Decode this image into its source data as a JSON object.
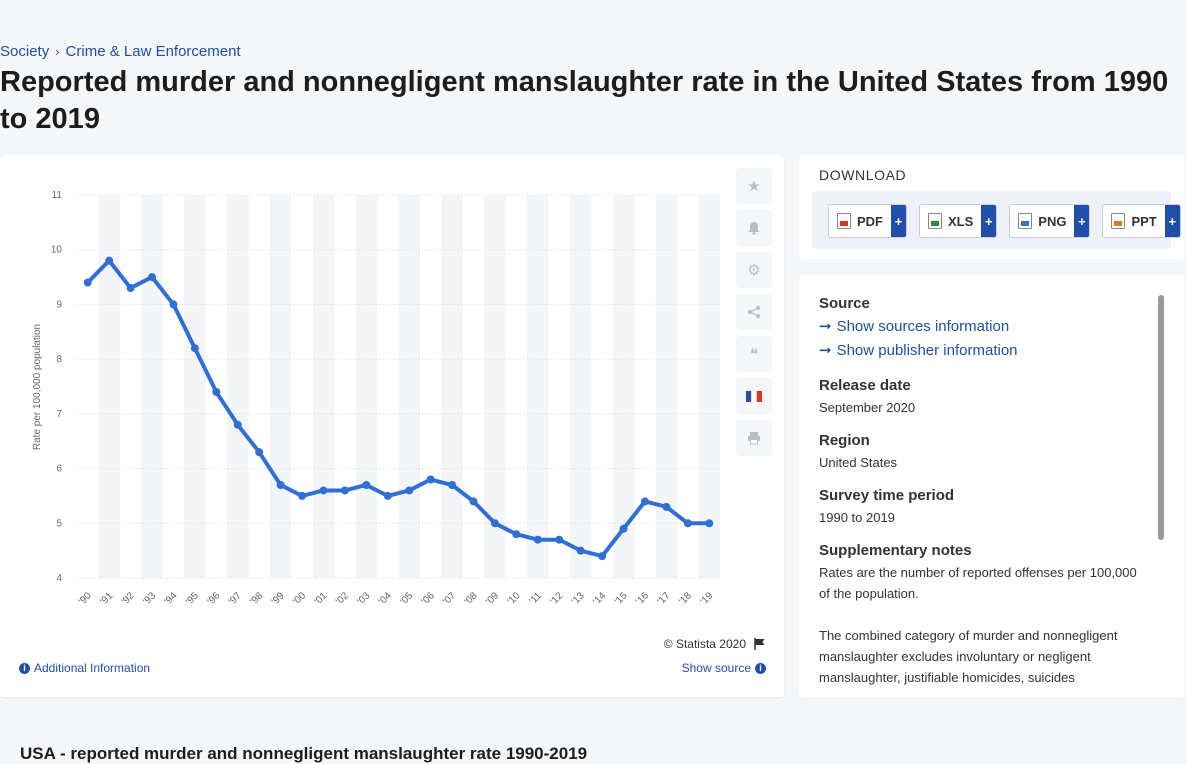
{
  "breadcrumb": {
    "items": [
      "Society",
      "Crime & Law Enforcement"
    ],
    "separator": "›"
  },
  "page_title": "Reported murder and nonnegligent manslaughter rate in the United States from 1990 to 2019",
  "chart_data": {
    "type": "line",
    "title": "",
    "xlabel": "",
    "ylabel": "Rate per 100,000 population",
    "categories": [
      "'90",
      "'91",
      "'92",
      "'93",
      "'94",
      "'95",
      "'96",
      "'97",
      "'98",
      "'99",
      "'00",
      "'01",
      "'02",
      "'03",
      "'04",
      "'05",
      "'06",
      "'07",
      "'08",
      "'09",
      "'10",
      "'11",
      "'12",
      "'13",
      "'14",
      "'15",
      "'16",
      "'17",
      "'18",
      "'19"
    ],
    "series": [
      {
        "values": [
          9.4,
          9.8,
          9.3,
          9.5,
          9.0,
          8.2,
          7.4,
          6.8,
          6.3,
          5.7,
          5.5,
          5.6,
          5.6,
          5.7,
          5.5,
          5.6,
          5.8,
          5.7,
          5.4,
          5.0,
          4.8,
          4.7,
          4.7,
          4.5,
          4.4,
          4.9,
          5.4,
          5.3,
          5.0,
          5.0
        ]
      }
    ],
    "ylim": [
      4,
      11
    ],
    "yticks": [
      "4",
      "5",
      "6",
      "7",
      "8",
      "9",
      "10",
      "11"
    ],
    "grid": true,
    "line_color": "#2f6fd6"
  },
  "chart_footer": {
    "credit": "© Statista 2020",
    "additional_info": "Additional Information",
    "show_source": "Show source"
  },
  "download": {
    "title": "DOWNLOAD",
    "buttons": [
      {
        "label": "PDF",
        "plus": "+",
        "color": "#d9342b"
      },
      {
        "label": "XLS",
        "plus": "+",
        "color": "#2e8b3a"
      },
      {
        "label": "PNG",
        "plus": "+",
        "color": "#3a6fc9"
      },
      {
        "label": "PPT",
        "plus": "+",
        "color": "#e07b1f"
      }
    ]
  },
  "source_panel": {
    "source_heading": "Source",
    "show_sources": "Show sources information",
    "show_publisher": "Show publisher information",
    "release_heading": "Release date",
    "release_value": "September 2020",
    "region_heading": "Region",
    "region_value": "United States",
    "period_heading": "Survey time period",
    "period_value": "1990 to 2019",
    "notes_heading": "Supplementary notes",
    "notes_p1": "Rates are the number of reported offenses per 100,000 of the population.",
    "notes_p2": "The combined category of murder and nonnegligent manslaughter excludes involuntary or negligent manslaughter, justifiable homicides, suicides"
  },
  "sub_title": "USA - reported murder and nonnegligent manslaughter rate 1990-2019"
}
